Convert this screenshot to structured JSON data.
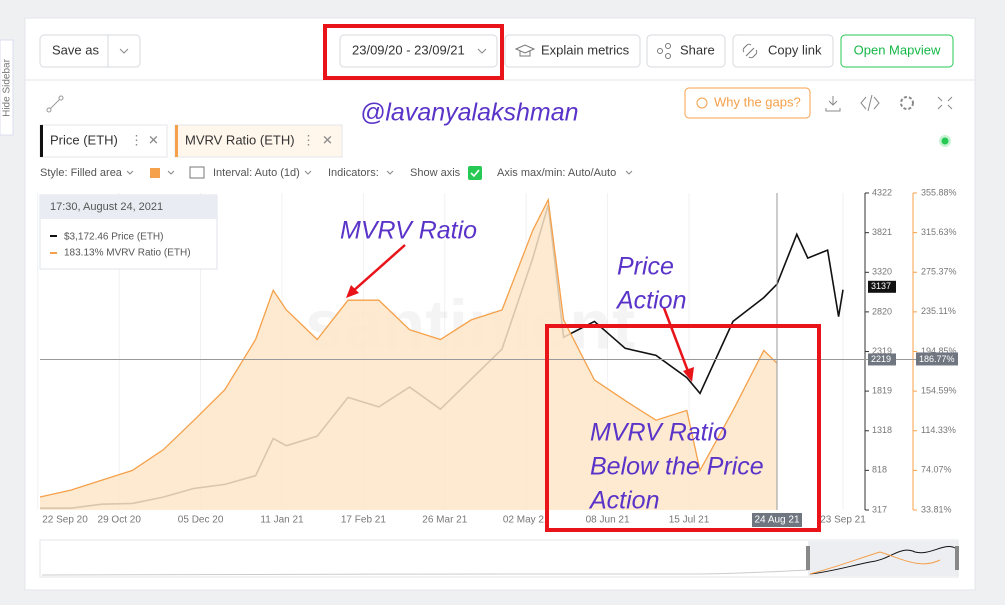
{
  "sidebar": {
    "toggle": "Hide Sidebar"
  },
  "toolbar": {
    "save_as": "Save as",
    "date_range": "23/09/20 - 23/09/21",
    "explain": "Explain metrics",
    "share": "Share",
    "copy_link": "Copy link",
    "open_mapview": "Open Mapview"
  },
  "watermark_user": "@lavanyalakshman",
  "why_gaps": "Why the gaps?",
  "settings": {
    "style": "Style: Filled area",
    "interval": "Interval: Auto (1d)",
    "indicators": "Indicators:",
    "show_axis": "Show axis",
    "axis_range": "Axis max/min: Auto/Auto"
  },
  "tooltip": {
    "date": "17:30, August 24, 2021",
    "price": "$3,172.46 Price (ETH)",
    "mvrv": "183.13% MVRV Ratio (ETH)"
  },
  "chart_data": {
    "type": "line",
    "x": [
      "2020-09-23",
      "2020-10-07",
      "2020-10-21",
      "2020-11-04",
      "2020-11-18",
      "2020-12-02",
      "2020-12-16",
      "2020-12-30",
      "2021-01-07",
      "2021-01-13",
      "2021-01-27",
      "2021-02-10",
      "2021-02-24",
      "2021-03-10",
      "2021-03-24",
      "2021-04-07",
      "2021-04-21",
      "2021-05-05",
      "2021-05-12",
      "2021-05-19",
      "2021-06-02",
      "2021-06-16",
      "2021-06-30",
      "2021-07-14",
      "2021-07-20",
      "2021-08-04",
      "2021-08-18",
      "2021-08-24",
      "2021-09-02",
      "2021-09-07",
      "2021-09-16",
      "2021-09-21",
      "2021-09-23"
    ],
    "xlim": [
      "2020-09-23",
      "2021-09-23"
    ],
    "xticks": [
      {
        "value": "2020-09-22",
        "label": "22 Sep 20"
      },
      {
        "value": "2020-10-29",
        "label": "29 Oct 20"
      },
      {
        "value": "2020-12-05",
        "label": "05 Dec 20"
      },
      {
        "value": "2021-01-11",
        "label": "11 Jan 21"
      },
      {
        "value": "2021-02-17",
        "label": "17 Feb 21"
      },
      {
        "value": "2021-03-26",
        "label": "26 Mar 21"
      },
      {
        "value": "2021-05-02",
        "label": "02 May 21"
      },
      {
        "value": "2021-06-08",
        "label": "08 Jun 21"
      },
      {
        "value": "2021-07-15",
        "label": "15 Jul 21"
      },
      {
        "value": "2021-08-24",
        "label": "24 Aug 21"
      },
      {
        "value": "2021-09-23",
        "label": "23 Sep 21"
      }
    ],
    "ylim": [
      317,
      4322
    ],
    "yticks": [
      317,
      818,
      1318,
      1819,
      2319,
      2820,
      3320,
      3821,
      4322
    ],
    "y2lim": [
      33.81,
      355.88
    ],
    "y2ticks": [
      {
        "value": 33.81,
        "label": "33.81%"
      },
      {
        "value": 74.07,
        "label": "74.07%"
      },
      {
        "value": 114.33,
        "label": "114.33%"
      },
      {
        "value": 154.59,
        "label": "154.59%"
      },
      {
        "value": 194.85,
        "label": "194.85%"
      },
      {
        "value": 235.11,
        "label": "235.11%"
      },
      {
        "value": 275.37,
        "label": "275.37%"
      },
      {
        "value": 315.63,
        "label": "315.63%"
      },
      {
        "value": 355.88,
        "label": "355.88%"
      }
    ],
    "series": [
      {
        "name": "Price (ETH)",
        "color": "#111111",
        "values": [
          340,
          340,
          390,
          400,
          480,
          590,
          640,
          750,
          1220,
          1130,
          1250,
          1740,
          1620,
          1870,
          1590,
          1970,
          2350,
          3500,
          4170,
          2500,
          2700,
          2360,
          2270,
          1990,
          1790,
          2700,
          3000,
          3170,
          3800,
          3500,
          3600,
          2760,
          3100
        ]
      },
      {
        "name": "MVRV Ratio (ETH)",
        "color": "#f5a04a",
        "fill": "#fde6c8",
        "axis": "y2",
        "values": [
          47,
          54,
          64,
          74,
          95,
          125,
          156,
          207,
          257,
          237,
          207,
          247,
          247,
          217,
          207,
          227,
          237,
          318,
          349,
          227,
          166,
          145,
          125,
          135,
          74,
          135,
          196,
          183,
          null,
          null,
          null,
          null,
          null
        ]
      }
    ],
    "watermark": "santiment",
    "last_price": 3137,
    "crosshair": {
      "x": "2021-08-24",
      "y": 2219,
      "y2": {
        "value": 186.77,
        "label": "186.77%"
      }
    },
    "annotations": [
      "MVRV Ratio",
      "Price",
      "Action",
      "MVRV Ratio",
      "Below the Price",
      "Action"
    ]
  }
}
